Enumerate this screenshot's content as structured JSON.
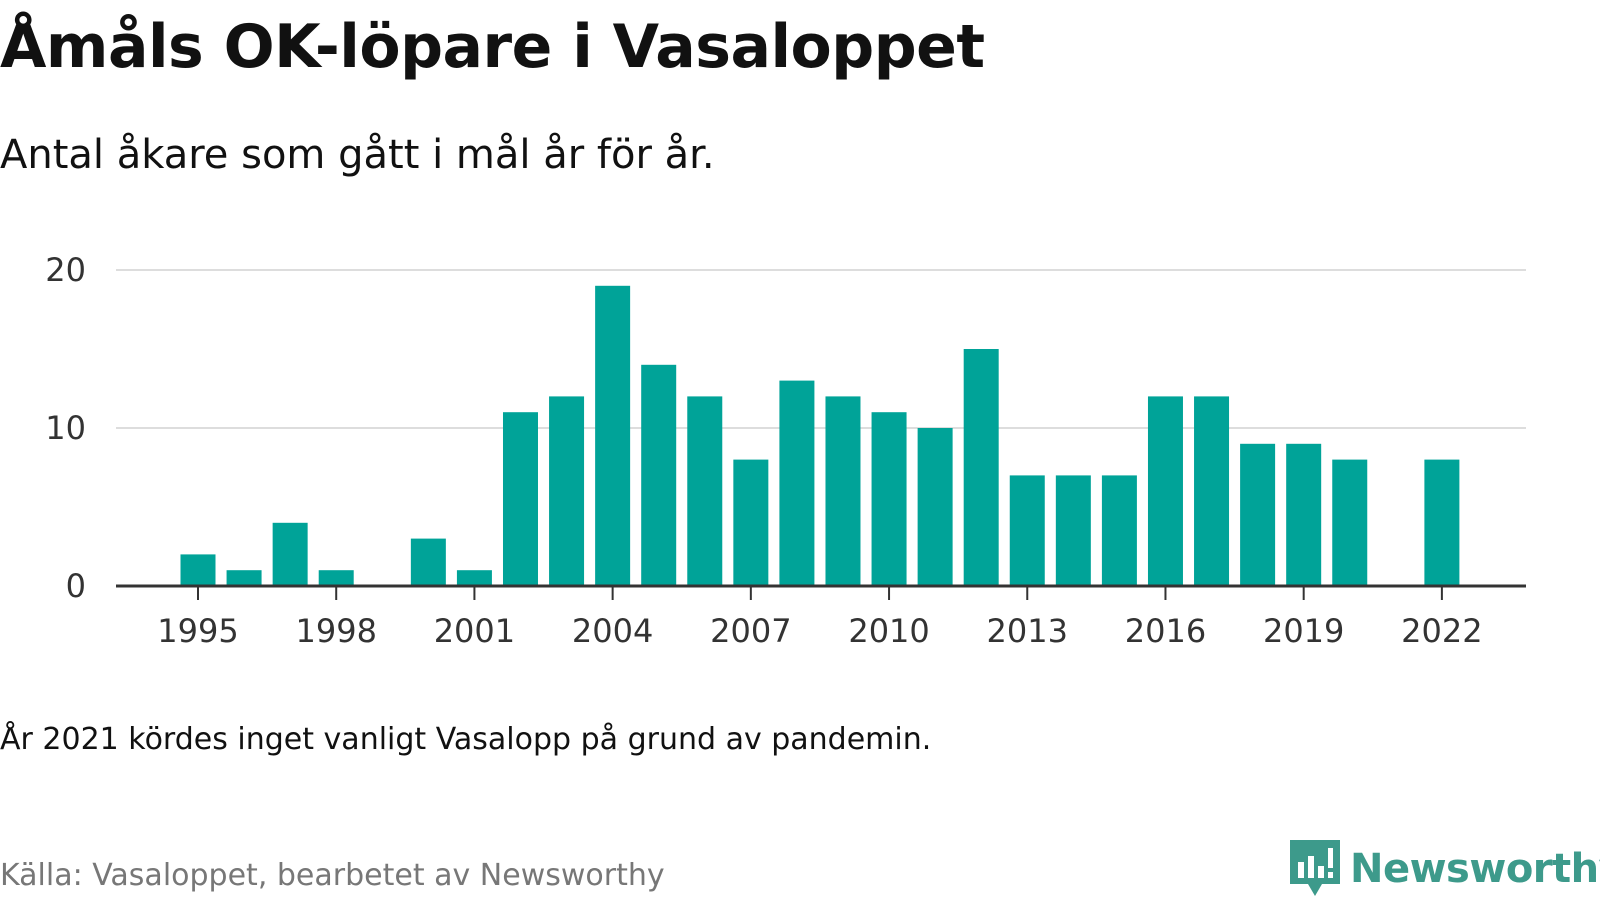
{
  "header": {
    "title": "Åmåls OK-löpare i Vasaloppet",
    "subtitle": "Antal åkare som gått i mål år för år."
  },
  "footer": {
    "note": "År 2021 kördes inget vanligt Vasalopp på grund av pandemin.",
    "source": "Källa: Vasaloppet, bearbetet av Newsworthy",
    "brand": "Newsworthy"
  },
  "colors": {
    "bar": "#00a398",
    "grid": "#dddddd",
    "axis": "#333333",
    "brand": "#3d9a8b"
  },
  "icons": {
    "brand_logo": "newsworthy-logo-icon"
  },
  "chart_data": {
    "type": "bar",
    "x": [
      1995,
      1996,
      1997,
      1998,
      1999,
      2000,
      2001,
      2002,
      2003,
      2004,
      2005,
      2006,
      2007,
      2008,
      2009,
      2010,
      2011,
      2012,
      2013,
      2014,
      2015,
      2016,
      2017,
      2018,
      2019,
      2020,
      2021,
      2022
    ],
    "values": [
      2,
      1,
      4,
      1,
      0,
      3,
      1,
      11,
      12,
      19,
      14,
      12,
      8,
      13,
      12,
      11,
      10,
      15,
      7,
      7,
      7,
      12,
      12,
      9,
      9,
      8,
      null,
      8
    ],
    "x_tick_labels": [
      "1995",
      "1998",
      "2001",
      "2004",
      "2007",
      "2010",
      "2013",
      "2016",
      "2019",
      "2022"
    ],
    "y_tick_labels": [
      "0",
      "10",
      "20"
    ],
    "ylim": [
      0,
      20
    ],
    "grid": true,
    "legend": "none"
  }
}
